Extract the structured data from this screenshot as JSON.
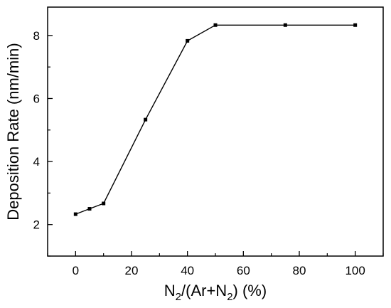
{
  "chart_data": {
    "type": "line",
    "xlabel": "N2/(Ar+N2) (%)",
    "ylabel": "Deposition Rate (nm/min)",
    "xlim": [
      -10,
      110
    ],
    "ylim": [
      1,
      8.9
    ],
    "x_ticks": [
      0,
      20,
      40,
      60,
      80,
      100
    ],
    "y_ticks": [
      2,
      4,
      6,
      8
    ],
    "x_minor_ticks": [
      -10,
      10,
      30,
      50,
      70,
      90,
      110
    ],
    "y_minor_ticks": [
      1,
      3,
      5,
      7
    ],
    "marker": "square",
    "line_color": "#000000",
    "series": [
      {
        "x": [
          0,
          5,
          10,
          25,
          40,
          50,
          75,
          100
        ],
        "values": [
          2.33,
          2.5,
          2.67,
          5.33,
          7.83,
          8.33,
          8.33,
          8.33
        ]
      }
    ]
  }
}
